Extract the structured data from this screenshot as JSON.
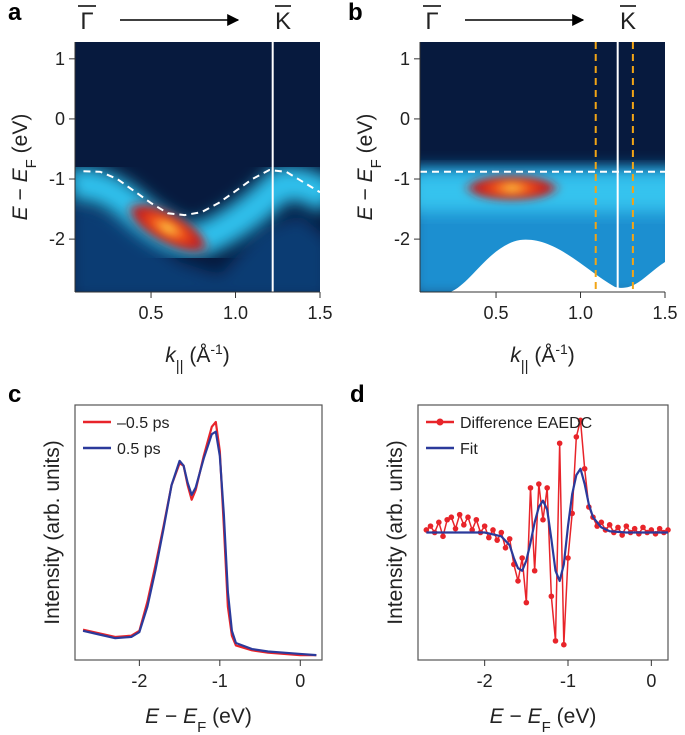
{
  "chart_data": [
    {
      "type": "heatmap",
      "panel_label": "a",
      "path_start": "Γ",
      "path_end": "K",
      "xlabel": [
        {
          "t": "k",
          "i": true
        },
        {
          "t": "||",
          "sub": true
        },
        {
          "t": " (Å"
        },
        {
          "t": "-1",
          "sup": true
        },
        {
          "t": ")"
        }
      ],
      "ylabel": [
        {
          "t": "E",
          "i": true
        },
        {
          "t": " − "
        },
        {
          "t": "E",
          "i": true
        },
        {
          "t": "F",
          "sub": true
        },
        {
          "t": " (eV)"
        }
      ],
      "xlim": [
        0.05,
        1.5
      ],
      "ylim": [
        -2.88,
        1.28
      ],
      "xticks": [
        0.5,
        {
          "value": 1,
          "label": "1.0"
        },
        1.5
      ],
      "yticks": [
        -2,
        -1,
        0,
        1
      ],
      "lines": [
        {
          "x": [
            0.1,
            0.2,
            0.3,
            0.4,
            0.5,
            0.6,
            0.7,
            0.8,
            0.9,
            1.0,
            1.1,
            1.2,
            1.3,
            1.4,
            1.5
          ],
          "y": [
            -0.87,
            -0.88,
            -1.0,
            -1.2,
            -1.4,
            -1.57,
            -1.6,
            -1.55,
            -1.4,
            -1.2,
            -1.0,
            -0.85,
            -0.88,
            -1.05,
            -1.22
          ],
          "color": "#ffffff",
          "dash": true
        }
      ],
      "vlines": [
        {
          "value": 1.22,
          "color": "#ffffff",
          "dash": false
        }
      ],
      "hlines": []
    },
    {
      "type": "heatmap",
      "panel_label": "b",
      "path_start": "Γ",
      "path_end": "K",
      "xlabel": [
        {
          "t": "k",
          "i": true
        },
        {
          "t": "||",
          "sub": true
        },
        {
          "t": " (Å"
        },
        {
          "t": "-1",
          "sup": true
        },
        {
          "t": ")"
        }
      ],
      "ylabel": [
        {
          "t": "E",
          "i": true
        },
        {
          "t": " − "
        },
        {
          "t": "E",
          "i": true
        },
        {
          "t": "F",
          "sub": true
        },
        {
          "t": " (eV)"
        }
      ],
      "xlim": [
        0.05,
        1.5
      ],
      "ylim": [
        -2.88,
        1.28
      ],
      "xticks": [
        0.5,
        {
          "value": 1,
          "label": "1.0"
        },
        1.5
      ],
      "yticks": [
        -2,
        -1,
        0,
        1
      ],
      "lines": [],
      "vlines": [
        {
          "value": 1.09,
          "color": "#f2a516",
          "dash": true
        },
        {
          "value": 1.22,
          "color": "#ffffff",
          "dash": false
        },
        {
          "value": 1.31,
          "color": "#f2a516",
          "dash": true
        }
      ],
      "hlines": [
        {
          "value": -0.88,
          "color": "#ffffff",
          "dash": true
        }
      ]
    },
    {
      "type": "line",
      "panel_label": "c",
      "xlabel": [
        {
          "t": "E",
          "i": true
        },
        {
          "t": " − "
        },
        {
          "t": "E",
          "i": true
        },
        {
          "t": "F",
          "sub": true
        },
        {
          "t": " (eV)"
        }
      ],
      "ylabel": [
        {
          "t": "Intensity (arb. units)"
        }
      ],
      "xlim": [
        -2.8,
        0.27
      ],
      "ylim": [
        0,
        1.05
      ],
      "xticks": [
        -2,
        -1,
        0
      ],
      "legend": "upper left",
      "series": [
        {
          "name": "–0.5 ps",
          "color": "#e8242a",
          "marker": false,
          "x": [
            -2.7,
            -2.5,
            -2.3,
            -2.1,
            -2.0,
            -1.9,
            -1.8,
            -1.7,
            -1.6,
            -1.5,
            -1.45,
            -1.4,
            -1.35,
            -1.3,
            -1.25,
            -1.2,
            -1.15,
            -1.1,
            -1.05,
            -1.0,
            -0.95,
            -0.9,
            -0.85,
            -0.8,
            -0.6,
            -0.4,
            -0.2,
            0,
            0.2
          ],
          "values": [
            0.125,
            0.11,
            0.095,
            0.1,
            0.12,
            0.24,
            0.39,
            0.55,
            0.72,
            0.81,
            0.8,
            0.72,
            0.66,
            0.7,
            0.77,
            0.84,
            0.9,
            0.96,
            0.98,
            0.86,
            0.55,
            0.22,
            0.1,
            0.06,
            0.04,
            0.03,
            0.025,
            0.02,
            0.02
          ]
        },
        {
          "name": "0.5 ps",
          "color": "#2b3a9b",
          "marker": false,
          "x": [
            -2.7,
            -2.5,
            -2.3,
            -2.1,
            -2.0,
            -1.9,
            -1.8,
            -1.7,
            -1.6,
            -1.5,
            -1.45,
            -1.4,
            -1.35,
            -1.3,
            -1.25,
            -1.2,
            -1.15,
            -1.1,
            -1.05,
            -1.0,
            -0.95,
            -0.9,
            -0.85,
            -0.8,
            -0.6,
            -0.4,
            -0.2,
            0,
            0.2
          ],
          "values": [
            0.12,
            0.105,
            0.09,
            0.095,
            0.115,
            0.22,
            0.37,
            0.54,
            0.72,
            0.82,
            0.8,
            0.73,
            0.68,
            0.71,
            0.77,
            0.83,
            0.88,
            0.93,
            0.94,
            0.84,
            0.6,
            0.28,
            0.12,
            0.07,
            0.045,
            0.035,
            0.03,
            0.025,
            0.02
          ]
        }
      ]
    },
    {
      "type": "line",
      "panel_label": "d",
      "xlabel": [
        {
          "t": "E",
          "i": true
        },
        {
          "t": " − "
        },
        {
          "t": "E",
          "i": true
        },
        {
          "t": "F",
          "sub": true
        },
        {
          "t": " (eV)"
        }
      ],
      "ylabel": [
        {
          "t": "Intensity (arb. units)"
        }
      ],
      "xlim": [
        -2.8,
        0.2
      ],
      "ylim": [
        -1,
        1
      ],
      "xticks": [
        -2,
        -1,
        0
      ],
      "legend": "upper left",
      "series": [
        {
          "name": "Difference EAEDC",
          "color": "#e8242a",
          "marker": true,
          "x": [
            -2.7,
            -2.65,
            -2.6,
            -2.55,
            -2.5,
            -2.45,
            -2.4,
            -2.35,
            -2.3,
            -2.25,
            -2.2,
            -2.15,
            -2.1,
            -2.05,
            -2.0,
            -1.95,
            -1.9,
            -1.85,
            -1.8,
            -1.75,
            -1.7,
            -1.65,
            -1.6,
            -1.55,
            -1.5,
            -1.45,
            -1.4,
            -1.35,
            -1.3,
            -1.25,
            -1.2,
            -1.15,
            -1.1,
            -1.05,
            -1.0,
            -0.95,
            -0.9,
            -0.85,
            -0.8,
            -0.75,
            -0.7,
            -0.65,
            -0.6,
            -0.55,
            -0.5,
            -0.45,
            -0.4,
            -0.35,
            -0.3,
            -0.25,
            -0.2,
            -0.15,
            -0.1,
            -0.05,
            0,
            0.05,
            0.1,
            0.15,
            0.2
          ],
          "values": [
            0.02,
            0.05,
            0,
            0.08,
            -0.03,
            0.1,
            0.12,
            0.03,
            0.14,
            0.06,
            0.12,
            0.02,
            0.1,
            0,
            0.05,
            -0.04,
            0.02,
            -0.06,
            0,
            -0.12,
            -0.05,
            -0.25,
            -0.38,
            -0.2,
            -0.55,
            0.35,
            -0.3,
            0.38,
            0.1,
            0.35,
            -0.5,
            -0.85,
            0.7,
            -0.88,
            -0.2,
            0.15,
            0.75,
            0.88,
            0.5,
            0.2,
            0.12,
            0.05,
            0.08,
            0.02,
            0.06,
            0,
            0.04,
            -0.02,
            0.05,
            0,
            0.03,
            -0.01,
            0.04,
            0,
            0.02,
            -0.01,
            0.03,
            0,
            0.02
          ]
        },
        {
          "name": "Fit",
          "color": "#2b3a9b",
          "marker": false,
          "x": [
            -2.7,
            -2.0,
            -1.8,
            -1.7,
            -1.65,
            -1.6,
            -1.55,
            -1.5,
            -1.45,
            -1.4,
            -1.35,
            -1.3,
            -1.25,
            -1.2,
            -1.15,
            -1.1,
            -1.05,
            -1.0,
            -0.95,
            -0.9,
            -0.85,
            -0.8,
            -0.75,
            -0.7,
            -0.6,
            -0.5,
            -0.3,
            0.2
          ],
          "values": [
            0,
            0,
            -0.03,
            -0.1,
            -0.2,
            -0.28,
            -0.3,
            -0.22,
            -0.08,
            0.08,
            0.2,
            0.25,
            0.18,
            -0.05,
            -0.3,
            -0.38,
            -0.25,
            0.05,
            0.3,
            0.45,
            0.5,
            0.38,
            0.22,
            0.12,
            0.04,
            0.01,
            0,
            0
          ]
        }
      ]
    }
  ]
}
